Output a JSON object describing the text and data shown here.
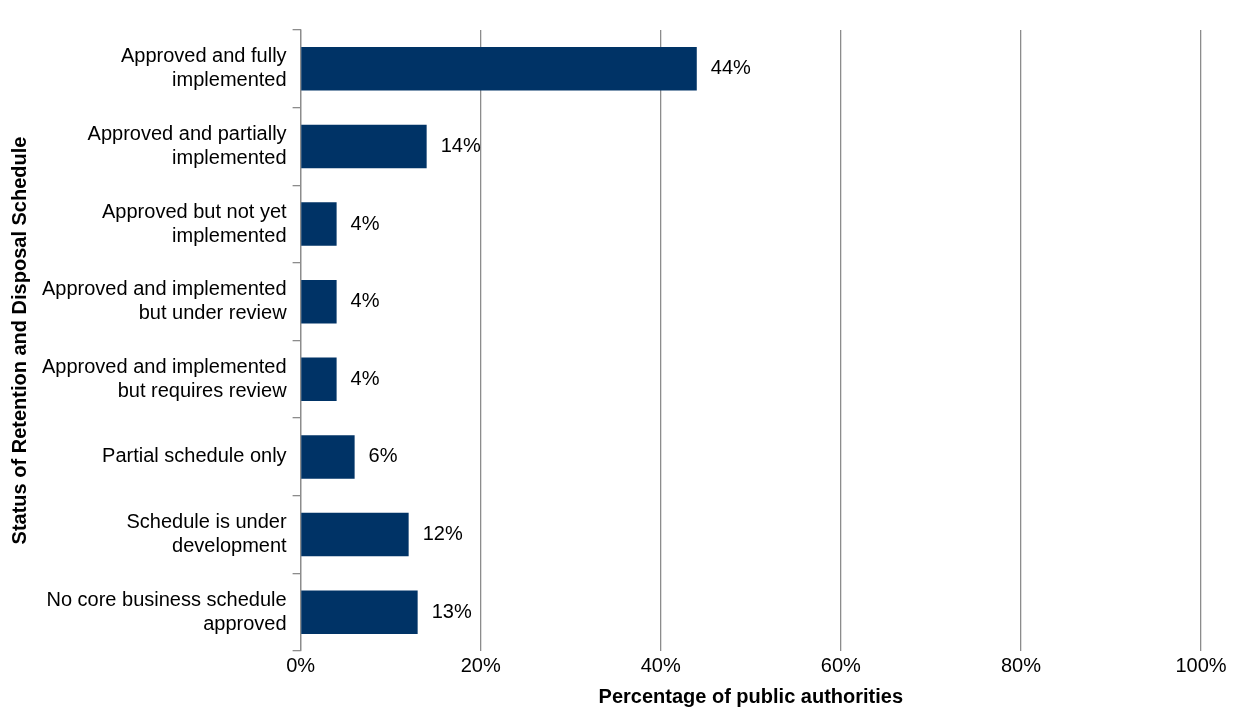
{
  "chart_data": {
    "type": "bar",
    "orientation": "horizontal",
    "xlabel": "Percentage of public authorities",
    "ylabel": "Status of Retention and Disposal Schedule",
    "categories": [
      "Approved and fully implemented",
      "Approved and partially implemented",
      "Approved but not yet implemented",
      "Approved and implemented but under review",
      "Approved and implemented but requires review",
      "Partial schedule only",
      "Schedule is under development",
      "No core business schedule approved"
    ],
    "values": [
      44,
      14,
      4,
      4,
      4,
      6,
      12,
      13
    ],
    "color": "#003366",
    "xlim": [
      0,
      100
    ],
    "xticks": [
      {
        "value": 0,
        "label": "0%"
      },
      {
        "value": 20,
        "label": "20%"
      },
      {
        "value": 40,
        "label": "40%"
      },
      {
        "value": 60,
        "label": "60%"
      },
      {
        "value": 80,
        "label": "80%"
      },
      {
        "value": 100,
        "label": "100%"
      }
    ],
    "value_labels": [
      "44%",
      "14%",
      "4%",
      "4%",
      "4%",
      "6%",
      "12%",
      "13%"
    ],
    "grid": "x",
    "legend": false
  }
}
